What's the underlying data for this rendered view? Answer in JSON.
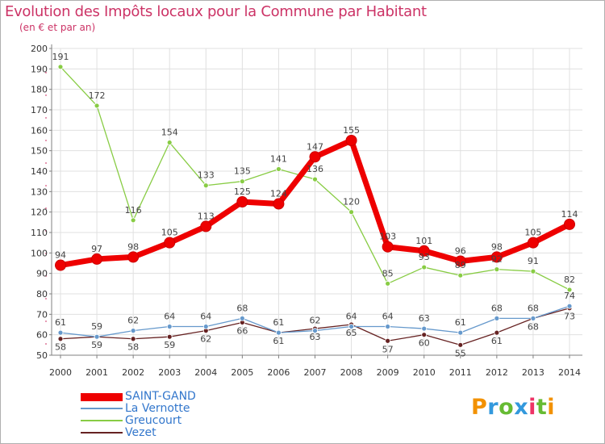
{
  "page": {
    "title": "Evolution des Impôts locaux pour la Commune par Habitant",
    "subtitle": "(en € et par an)",
    "brand": "Proxiti"
  },
  "colors": {
    "title": "#cc3366",
    "legend_text": "#3377cc",
    "grid": "#e0e0e0",
    "axis": "#808080"
  },
  "chart_data": {
    "type": "line",
    "title": "Evolution des Impôts locaux pour la Commune par Habitant",
    "ylabel": "(en € et par an)",
    "xlabel": "",
    "x": [
      "2000",
      "2001",
      "2002",
      "2003",
      "2004",
      "2005",
      "2006",
      "2007",
      "2008",
      "2009",
      "2010",
      "2011",
      "2012",
      "2013",
      "2014"
    ],
    "ylim": [
      50,
      200
    ],
    "yticks": [
      50,
      60,
      70,
      80,
      90,
      100,
      110,
      120,
      130,
      140,
      150,
      160,
      170,
      180,
      190,
      200
    ],
    "grid": true,
    "legend_position": "bottom-left",
    "series": [
      {
        "name": "SAINT-GAND",
        "color": "#ee0000",
        "values": [
          94,
          97,
          98,
          105,
          113,
          125,
          124,
          147,
          155,
          103,
          101,
          96,
          98,
          105,
          114
        ],
        "labels": [
          "94",
          "97",
          "98",
          "105",
          "113",
          "125",
          "124",
          "147",
          "155",
          "103",
          "101",
          "96",
          "98",
          "105",
          "114"
        ]
      },
      {
        "name": "La Vernotte",
        "color": "#6699cc",
        "values": [
          61,
          59,
          62,
          64,
          64,
          68,
          61,
          62,
          64,
          64,
          63,
          61,
          68,
          68,
          74
        ],
        "labels": [
          "61",
          "59",
          "62",
          "64",
          "64",
          "68",
          "61",
          "62",
          "64",
          "64",
          "63",
          "61",
          "68",
          "68",
          "74"
        ]
      },
      {
        "name": "Greucourt",
        "color": "#88cc44",
        "values": [
          191,
          172,
          116,
          154,
          133,
          135,
          141,
          136,
          120,
          85,
          93,
          89,
          92,
          91,
          82
        ],
        "labels": [
          "191",
          "172",
          "116",
          "154",
          "133",
          "135",
          "141",
          "136",
          "120",
          "85",
          "93",
          "89",
          "92",
          "91",
          "82"
        ]
      },
      {
        "name": "Vezet",
        "color": "#662222",
        "values": [
          58,
          59,
          58,
          59,
          62,
          66,
          61,
          63,
          65,
          57,
          60,
          55,
          61,
          68,
          73
        ],
        "labels": [
          "58",
          "59",
          "58",
          "59",
          "62",
          "66",
          "61",
          "63",
          "65",
          "57",
          "60",
          "55",
          "61",
          "68",
          "73"
        ]
      }
    ]
  }
}
